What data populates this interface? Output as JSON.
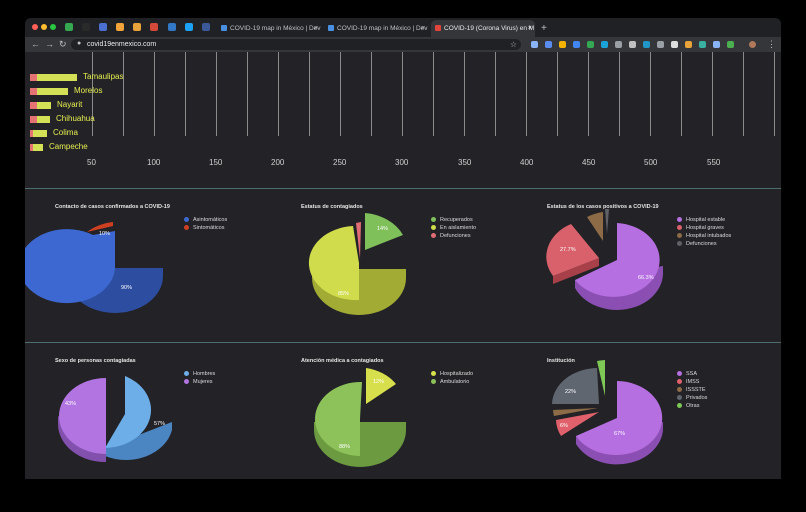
{
  "browser": {
    "tabs": [
      {
        "title": "COVID-19 map in México | Dev",
        "favicon_color": "#4a90e2",
        "active": false
      },
      {
        "title": "COVID-19 map in México | Dev",
        "favicon_color": "#4a90e2",
        "active": false
      },
      {
        "title": "COVID-19 (Corona Virus) en M",
        "favicon_color": "#e0443b",
        "active": true
      }
    ],
    "new_tab_label": "+",
    "close_label": "×",
    "url": "covid19enmexico.com",
    "icons": [
      "back-icon",
      "forward-icon",
      "reload-icon",
      "lock-icon",
      "star-icon",
      "menu-icon"
    ]
  },
  "bar_chart": {
    "categories": [
      "Tamaulipas",
      "Morelos",
      "Nayarit",
      "Chihuahua",
      "Colima",
      "Campeche"
    ],
    "x_ticks": [
      "50",
      "100",
      "150",
      "200",
      "250",
      "300",
      "350",
      "400",
      "450",
      "500",
      "550"
    ],
    "colors": {
      "bar": "#d4e157",
      "stub": "#e57373",
      "label": "#e8f050"
    }
  },
  "charts": [
    {
      "title": "Contacto de casos confirmados a COVID-19",
      "legend": [
        "Asintomáticos",
        "Sintomáticos"
      ],
      "colors": [
        "#3d68d1",
        "#cf3f22"
      ],
      "labels": [
        "90%",
        "10%"
      ]
    },
    {
      "title": "Estatus de contagiados",
      "legend": [
        "Recuperados",
        "En aislamiento",
        "Defunciones"
      ],
      "colors": [
        "#80c05a",
        "#d0dc4c",
        "#e06d74"
      ],
      "labels": [
        "14%",
        "85%"
      ]
    },
    {
      "title": "Estatus de los casos positivos a COVID-19",
      "legend": [
        "Hospital estable",
        "Hospital graves",
        "Hospital intubados",
        "Defunciones"
      ],
      "colors": [
        "#b56fe0",
        "#d9616b",
        "#8c6b46",
        "#5f6166"
      ],
      "labels": [
        "66.3%",
        "27.7%"
      ]
    },
    {
      "title": "Sexo de personas contagiadas",
      "legend": [
        "Hombres",
        "Mujeres"
      ],
      "colors": [
        "#6daee8",
        "#b174e0"
      ],
      "labels": [
        "57%",
        "43%"
      ]
    },
    {
      "title": "Atención médica a contagiados",
      "legend": [
        "Hospitalizado",
        "Ambulatorio"
      ],
      "colors": [
        "#d8df4c",
        "#8dc25a"
      ],
      "labels": [
        "12%",
        "88%"
      ]
    },
    {
      "title": "Institución",
      "legend": [
        "SSA",
        "IMSS",
        "ISSSTE",
        "Privados",
        "Otras"
      ],
      "colors": [
        "#b56fe0",
        "#e0616b",
        "#8c6b46",
        "#5f6670",
        "#7ec856"
      ],
      "labels": [
        "67%",
        "6%",
        "22%"
      ]
    }
  ]
}
